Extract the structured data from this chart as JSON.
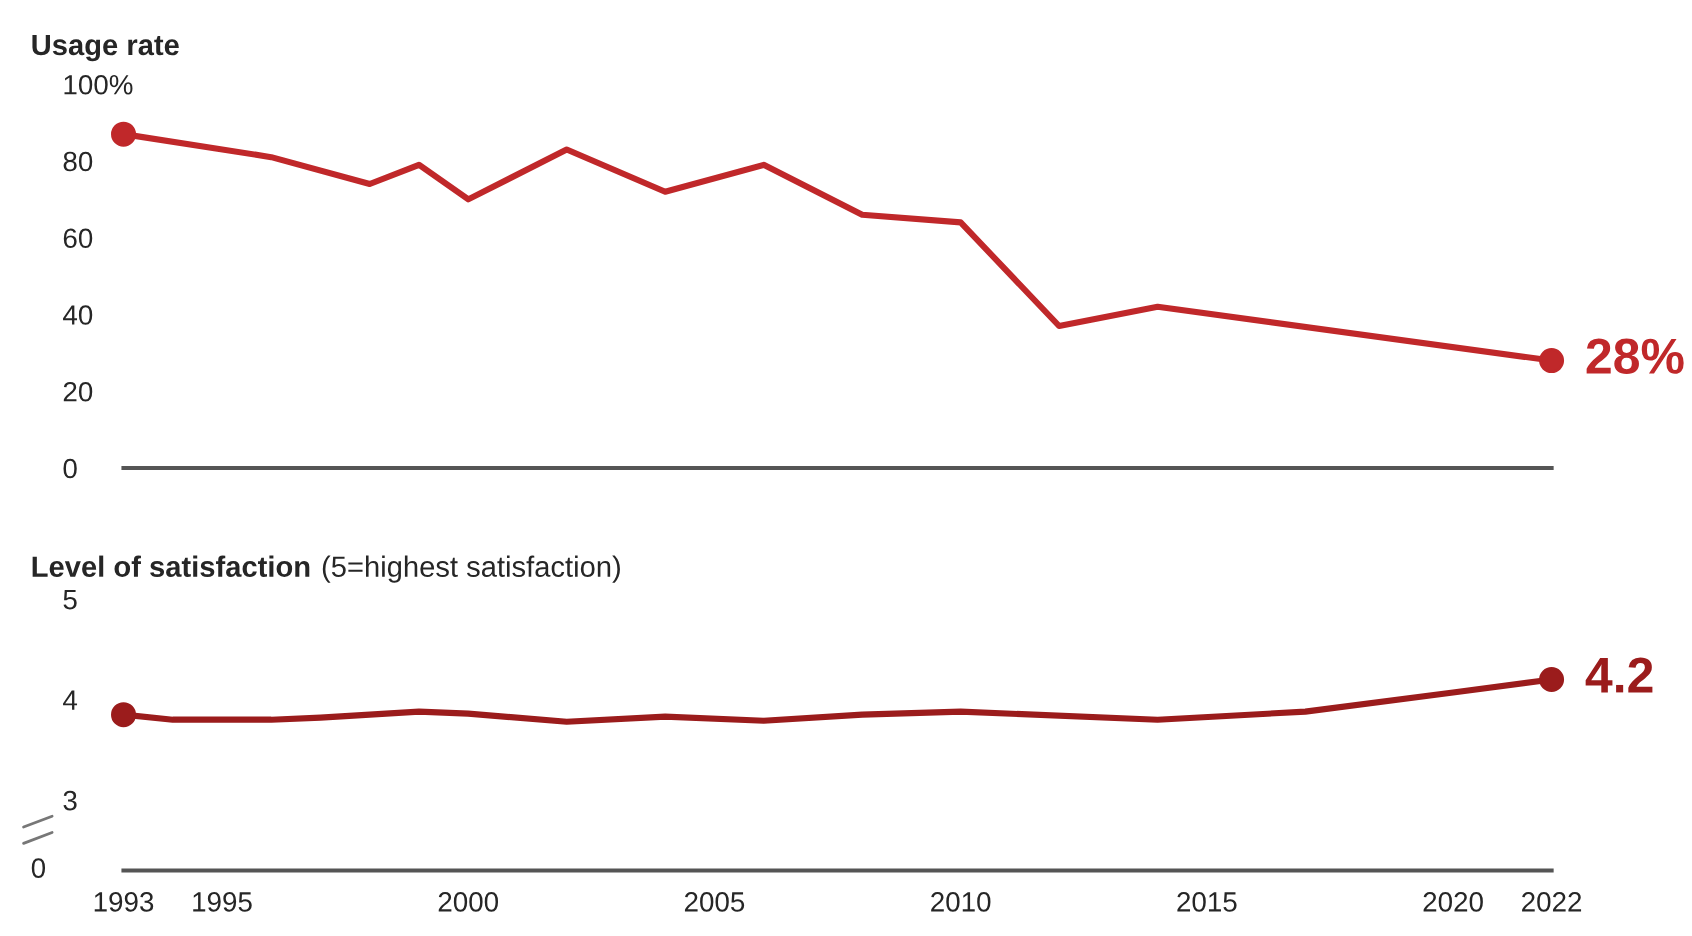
{
  "chart_data": [
    {
      "type": "line",
      "title": "Usage rate",
      "x": [
        1993,
        1996,
        1998,
        1999,
        2000,
        2002,
        2004,
        2006,
        2008,
        2010,
        2012,
        2014,
        2022
      ],
      "series": [
        {
          "color": "#c0282a",
          "values": [
            87,
            81,
            74,
            79,
            70,
            83,
            72,
            79,
            66,
            64,
            37,
            42,
            28
          ],
          "value_labels": [
            null,
            null,
            null,
            null,
            null,
            null,
            null,
            null,
            null,
            null,
            null,
            null,
            "28%"
          ]
        }
      ],
      "xlim": [
        1993,
        2022
      ],
      "ylim": [
        0,
        100
      ],
      "yticks": [
        0,
        20,
        40,
        60,
        80,
        {
          "value": 100,
          "label": "100%"
        }
      ],
      "tick_labels": "y",
      "grid": false,
      "legend": false
    },
    {
      "type": "line",
      "title": "Level of satisfaction",
      "subtitle": "(5=highest satisfaction)",
      "x": [
        1993,
        1994,
        1996,
        1997,
        1999,
        2000,
        2002,
        2004,
        2006,
        2008,
        2010,
        2014,
        2017,
        2020,
        2022
      ],
      "series": [
        {
          "color": "#9b1c1c",
          "values": [
            3.85,
            3.8,
            3.8,
            3.82,
            3.88,
            3.86,
            3.78,
            3.83,
            3.79,
            3.85,
            3.88,
            3.8,
            3.88,
            4.07,
            4.2
          ],
          "value_labels": [
            null,
            null,
            null,
            null,
            null,
            null,
            null,
            null,
            null,
            null,
            null,
            null,
            null,
            null,
            "4.2"
          ]
        }
      ],
      "xlim": [
        1993,
        2022
      ],
      "xticks": [
        1993,
        1995,
        2000,
        2005,
        2010,
        2015,
        2020,
        2022
      ],
      "ylim": [
        2.3,
        5
      ],
      "yticks": [
        3,
        4,
        5
      ],
      "annotations": [
        "0"
      ],
      "grid": false,
      "legend": false
    }
  ]
}
